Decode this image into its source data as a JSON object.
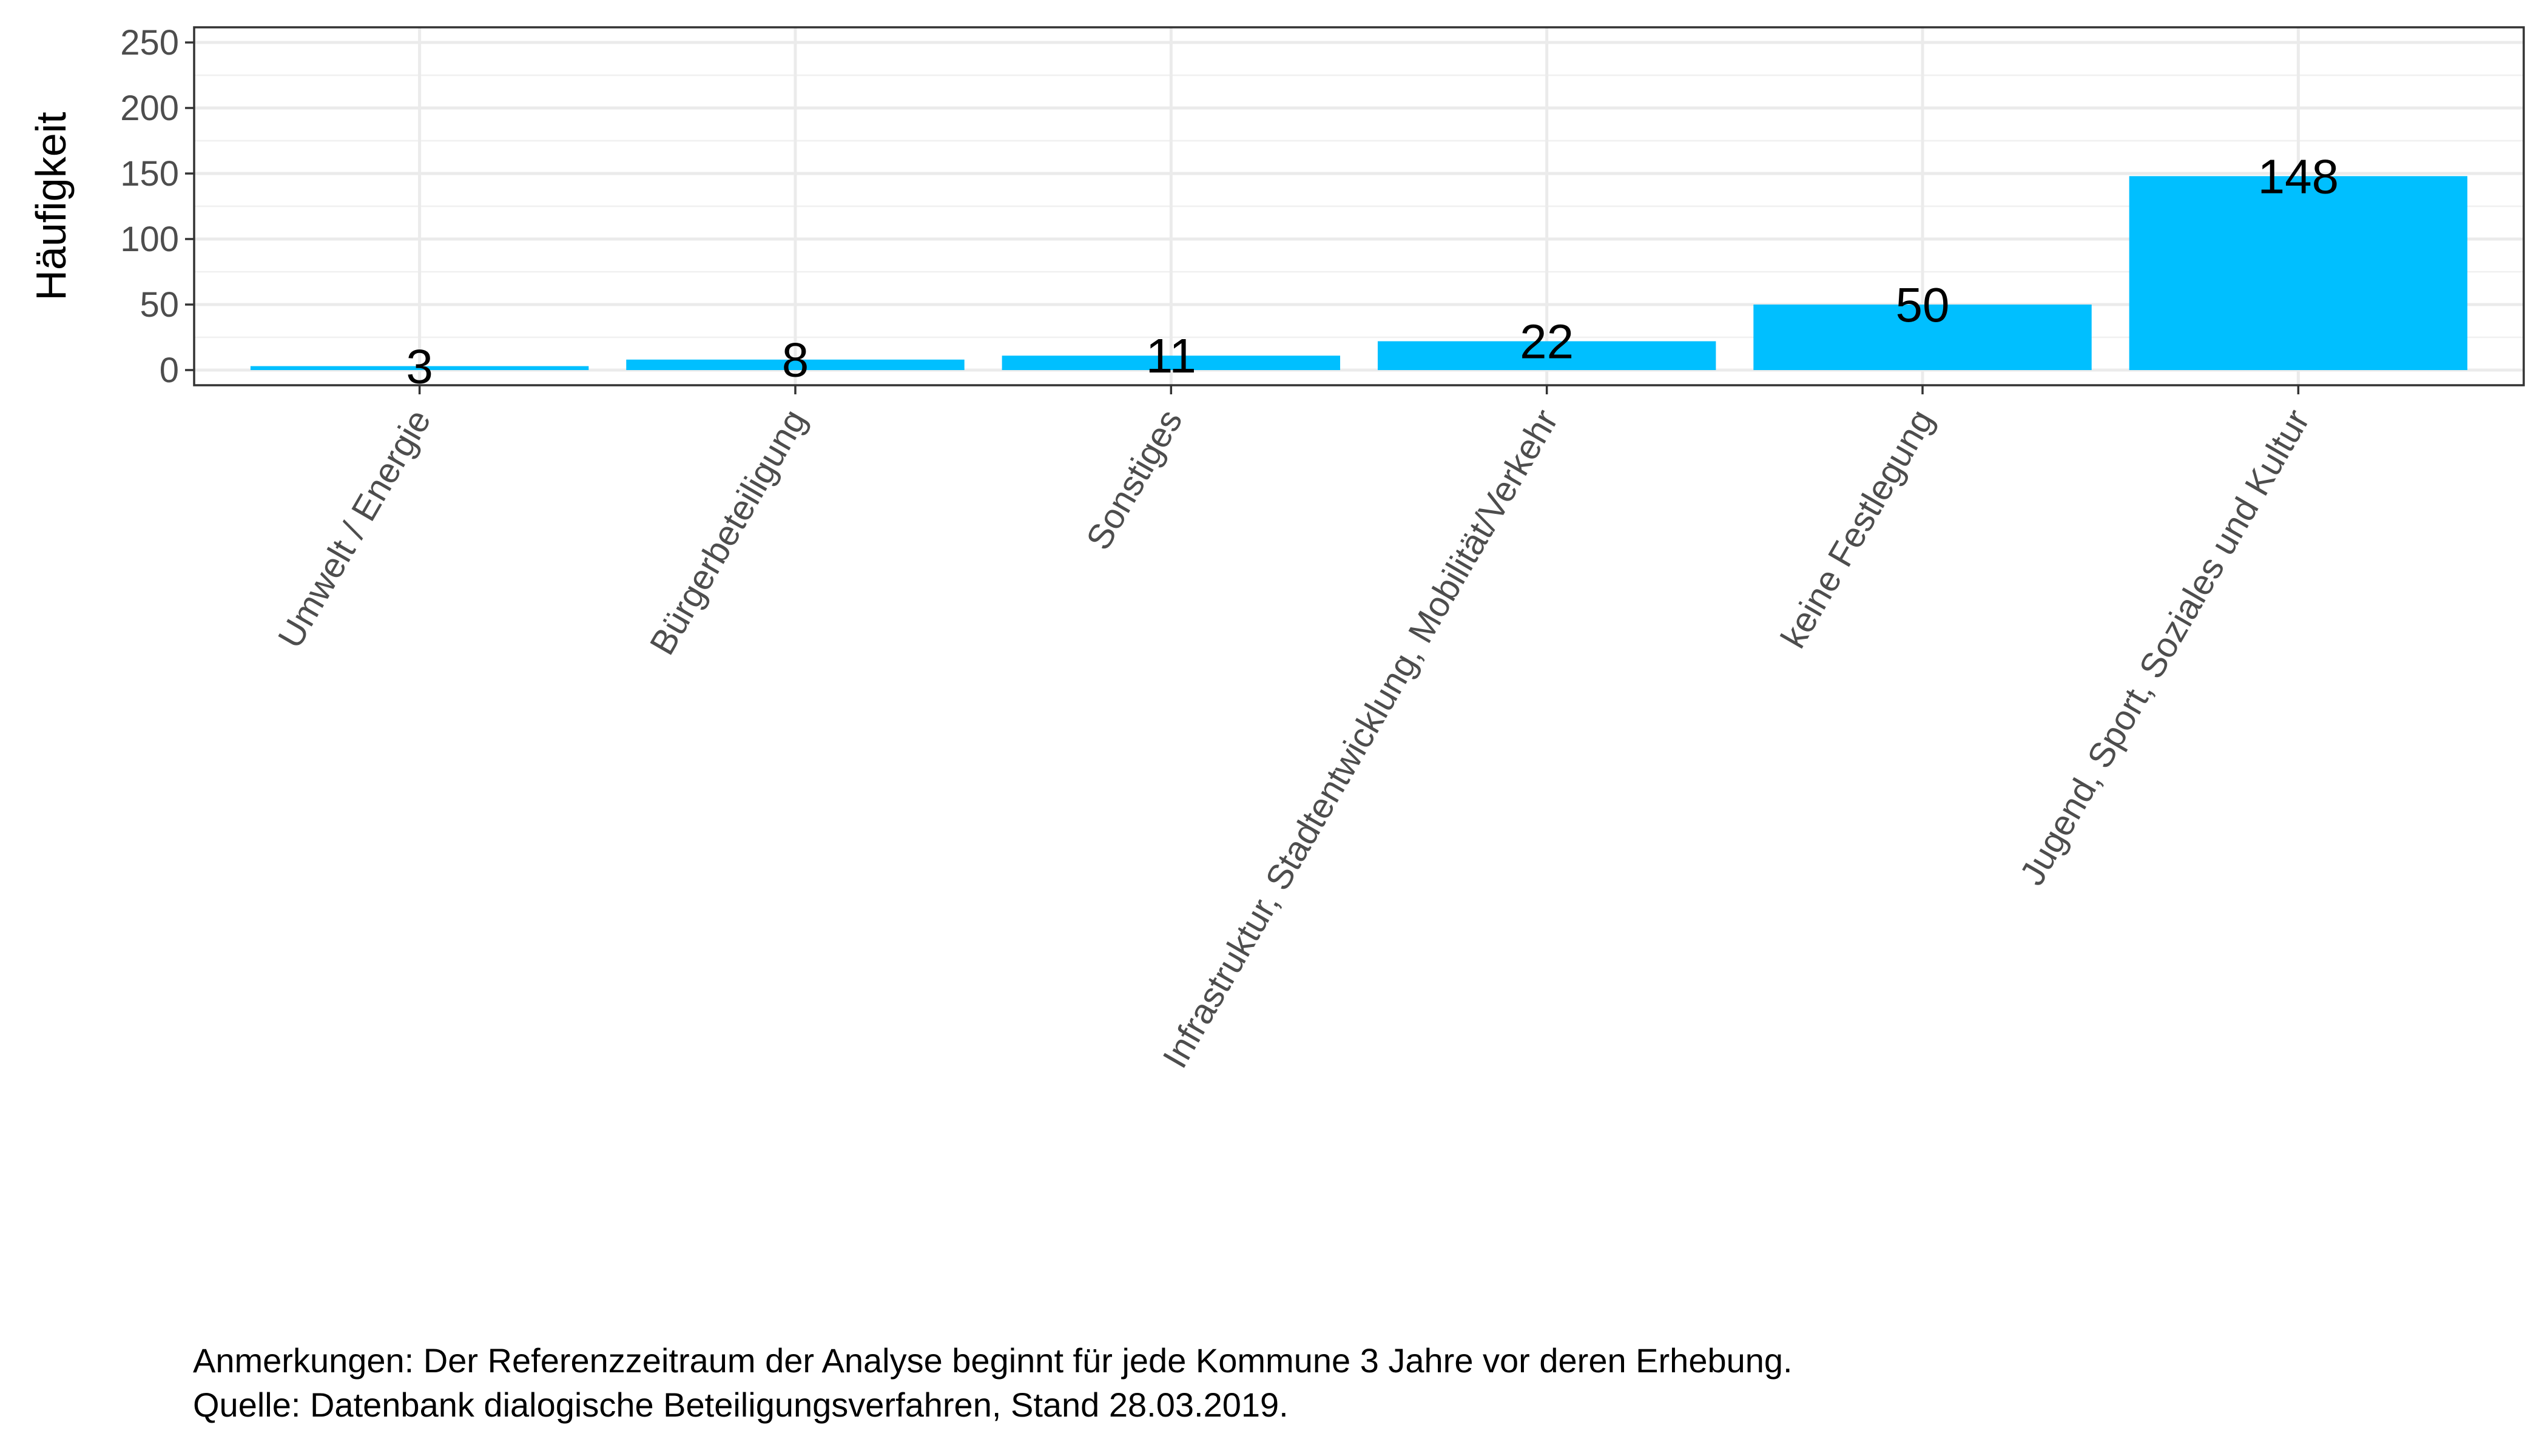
{
  "chart_data": {
    "type": "bar",
    "categories": [
      "Umwelt / Energie",
      "Bürgerbeteiligung",
      "Sonstiges",
      "Infrastruktur, Stadtentwicklung, Mobilität/Verkehr",
      "keine Festlegung",
      "Jugend, Sport, Soziales und Kultur"
    ],
    "values": [
      3,
      8,
      11,
      22,
      50,
      148
    ],
    "data_labels": [
      "3",
      "8",
      "11",
      "22",
      "50",
      "148"
    ],
    "title": "",
    "xlabel": "",
    "ylabel": "Häufigkeit",
    "ylim": [
      0,
      250
    ],
    "yticks": [
      "0",
      "50",
      "100",
      "150",
      "200",
      "250"
    ],
    "grid": true,
    "legend": "none",
    "bar_color": "#00BFFF"
  },
  "notes": {
    "line1": "Anmerkungen: Der Referenzzeitraum der Analyse beginnt für jede Kommune 3 Jahre vor deren Erhebung.",
    "line2": "Quelle: Datenbank dialogische Beteiligungsverfahren, Stand 28.03.2019."
  }
}
